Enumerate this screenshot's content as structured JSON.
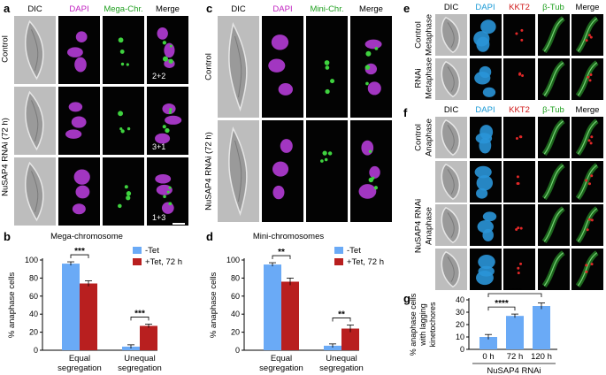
{
  "panels": {
    "a": {
      "label": "a",
      "headers": [
        "DIC",
        "DAPI",
        "Mega-Chr.",
        "Merge"
      ],
      "header_colors": [
        "#000000",
        "#c020c0",
        "#20a020",
        "#000000"
      ],
      "rows": [
        {
          "label": "Control",
          "annotation": "2+2"
        },
        {
          "label": "NuSAP4 RNAi (72 h)",
          "annotation": "3+1"
        },
        {
          "label": "",
          "annotation": "1+3"
        }
      ]
    },
    "b": {
      "label": "b"
    },
    "c": {
      "label": "c",
      "headers": [
        "DIC",
        "DAPI",
        "Mini-Chr.",
        "Merge"
      ],
      "header_colors": [
        "#000000",
        "#c020c0",
        "#20a020",
        "#000000"
      ],
      "rows": [
        {
          "label": "Control"
        },
        {
          "label": "NuSAP4 RNAi (72 h)"
        }
      ]
    },
    "d": {
      "label": "d"
    },
    "e": {
      "label": "e",
      "headers": [
        "DIC",
        "DAPI",
        "KKT2",
        "β-Tub",
        "Merge"
      ],
      "header_colors": [
        "#000000",
        "#1a9ad6",
        "#d01818",
        "#20a020",
        "#000000"
      ],
      "rows": [
        {
          "label1": "Control",
          "label2": "Metaphase"
        },
        {
          "label1": "RNAi",
          "label2": "Metaphase"
        }
      ]
    },
    "f": {
      "label": "f",
      "headers": [
        "DIC",
        "DAPI",
        "KKT2",
        "β-Tub",
        "Merge"
      ],
      "header_colors": [
        "#000000",
        "#1a9ad6",
        "#d01818",
        "#20a020",
        "#000000"
      ],
      "rows": [
        {
          "label1": "Control",
          "label2": "Anaphase"
        }
      ],
      "group_label1": "NuSAP4 RNAi",
      "group_label2": "Anaphase"
    },
    "g": {
      "label": "g"
    }
  },
  "chart_data": [
    {
      "id": "b",
      "type": "bar",
      "title": "Mega-chromosome",
      "ylabel": "% anaphase cells",
      "categories": [
        "Equal segregation",
        "Unequal segregation"
      ],
      "category_lines": [
        [
          "Equal",
          "segregation"
        ],
        [
          "Unequal",
          "segregation"
        ]
      ],
      "series": [
        {
          "name": "-Tet",
          "color": "#6aaaf6",
          "values": [
            96,
            4
          ],
          "errors": [
            2,
            2
          ]
        },
        {
          "name": "+Tet, 72 h",
          "color": "#b81f1f",
          "values": [
            74,
            27
          ],
          "errors": [
            3,
            2
          ]
        }
      ],
      "ylim": [
        0,
        100
      ],
      "yticks": [
        0,
        20,
        40,
        60,
        80,
        100
      ],
      "significance": [
        "***",
        "***"
      ],
      "legend": "top-right"
    },
    {
      "id": "d",
      "type": "bar",
      "title": "Mini-chromosomes",
      "ylabel": "% anaphase cells",
      "categories": [
        "Equal segregation",
        "Unequal segregation"
      ],
      "category_lines": [
        [
          "Equal",
          "segregation"
        ],
        [
          "Unequal",
          "segregation"
        ]
      ],
      "series": [
        {
          "name": "-Tet",
          "color": "#6aaaf6",
          "values": [
            95,
            5
          ],
          "errors": [
            2,
            2
          ]
        },
        {
          "name": "+Tet, 72 h",
          "color": "#b81f1f",
          "values": [
            76,
            24
          ],
          "errors": [
            4,
            4
          ]
        }
      ],
      "ylim": [
        0,
        100
      ],
      "yticks": [
        0,
        20,
        40,
        60,
        80,
        100
      ],
      "significance": [
        "**",
        "**"
      ],
      "legend": "top-right"
    },
    {
      "id": "g",
      "type": "bar",
      "ylabel_lines": [
        "% anaphase cells",
        "with lagging",
        "kinetochores"
      ],
      "categories": [
        "0 h",
        "72 h",
        "120 h"
      ],
      "xlabel": "NuSAP4 RNAi",
      "series": [
        {
          "name": "",
          "color": "#6aaaf6",
          "values": [
            10,
            27,
            35
          ],
          "errors": [
            2,
            1.5,
            2.5
          ]
        }
      ],
      "ylim": [
        0,
        40
      ],
      "yticks": [
        0,
        10,
        20,
        30,
        40
      ],
      "significance": [
        {
          "from": "0 h",
          "to": "72 h",
          "label": "****"
        },
        {
          "from": "0 h",
          "to": "120 h",
          "label": "****"
        }
      ]
    }
  ]
}
